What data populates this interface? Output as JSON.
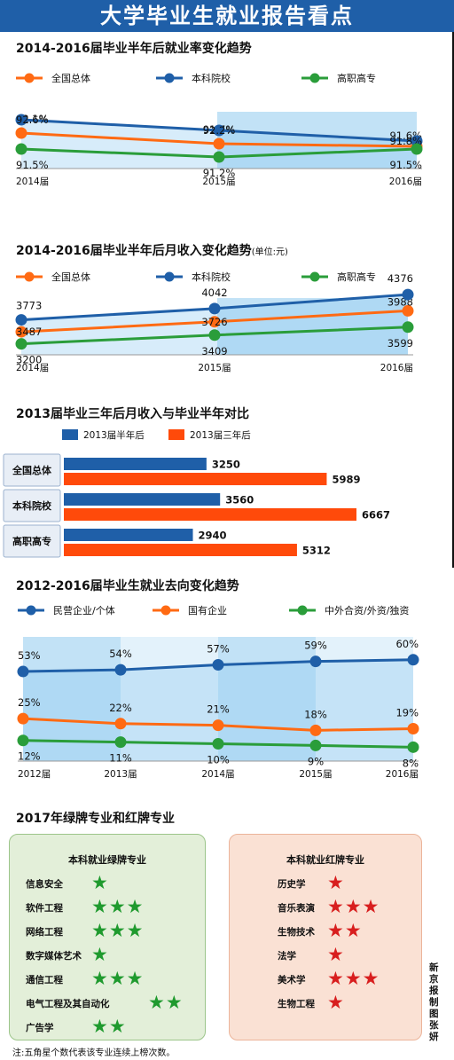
{
  "header": {
    "title": "大学毕业生就业报告看点"
  },
  "chart_data": [
    {
      "type": "line",
      "title": "2014-2016届毕业半年后就业率变化趋势",
      "categories": [
        "2014届",
        "2015届",
        "2016届"
      ],
      "series": [
        {
          "name": "全国总体",
          "color": "#ff6a13",
          "values": [
            92.1,
            91.7,
            91.6
          ],
          "labels": [
            "92.1%",
            "91.7%",
            "91.6%"
          ]
        },
        {
          "name": "本科院校",
          "color": "#1f5fa8",
          "values": [
            92.6,
            92.2,
            91.8
          ],
          "labels": [
            "92.6%",
            "92.2%",
            "91.8%"
          ]
        },
        {
          "name": "高职高专",
          "color": "#2a9d3a",
          "values": [
            91.5,
            91.2,
            91.5
          ],
          "labels": [
            "91.5%",
            "91.2%",
            "91.5%"
          ]
        }
      ]
    },
    {
      "type": "line",
      "title": "2014-2016届毕业半年后月收入变化趋势",
      "unit": "(单位:元)",
      "categories": [
        "2014届",
        "2015届",
        "2016届"
      ],
      "series": [
        {
          "name": "全国总体",
          "color": "#ff6a13",
          "values": [
            3487,
            3726,
            3988
          ],
          "labels": [
            "3487",
            "3726",
            "3988"
          ]
        },
        {
          "name": "本科院校",
          "color": "#1f5fa8",
          "values": [
            3773,
            4042,
            4376
          ],
          "labels": [
            "3773",
            "4042",
            "4376"
          ]
        },
        {
          "name": "高职高专",
          "color": "#2a9d3a",
          "values": [
            3200,
            3409,
            3599
          ],
          "labels": [
            "3200",
            "3409",
            "3599"
          ]
        }
      ]
    },
    {
      "type": "bar",
      "title": "2013届毕业三年后月收入与毕业半年对比",
      "categories": [
        "全国总体",
        "本科院校",
        "高职高专"
      ],
      "series": [
        {
          "name": "2013届半年后",
          "color": "#1f5fa8",
          "values": [
            3250,
            3560,
            2940
          ]
        },
        {
          "name": "2013届三年后",
          "color": "#ff4a0a",
          "values": [
            5989,
            6667,
            5312
          ]
        }
      ]
    },
    {
      "type": "line",
      "title": "2012-2016届毕业生就业去向变化趋势",
      "categories": [
        "2012届",
        "2013届",
        "2014届",
        "2015届",
        "2016届"
      ],
      "series": [
        {
          "name": "民营企业/个体",
          "color": "#1f5fa8",
          "values": [
            53,
            54,
            57,
            59,
            60
          ],
          "labels": [
            "53%",
            "54%",
            "57%",
            "59%",
            "60%"
          ]
        },
        {
          "name": "国有企业",
          "color": "#ff6a13",
          "values": [
            25,
            22,
            21,
            18,
            19
          ],
          "labels": [
            "25%",
            "22%",
            "21%",
            "18%",
            "19%"
          ]
        },
        {
          "name": "中外合资/外资/独资",
          "color": "#2a9d3a",
          "values": [
            12,
            11,
            10,
            9,
            8
          ],
          "labels": [
            "12%",
            "11%",
            "10%",
            "9%",
            "8%"
          ]
        }
      ]
    }
  ],
  "majors": {
    "title": "2017年绿牌专业和红牌专业",
    "green": {
      "title": "本科就业绿牌专业",
      "color": "#1f9a2e",
      "items": [
        {
          "name": "信息安全",
          "stars": 1
        },
        {
          "name": "软件工程",
          "stars": 3
        },
        {
          "name": "网络工程",
          "stars": 3
        },
        {
          "name": "数字媒体艺术",
          "stars": 1
        },
        {
          "name": "通信工程",
          "stars": 3
        },
        {
          "name": "电气工程及其自动化",
          "stars": 2
        },
        {
          "name": "广告学",
          "stars": 2
        }
      ]
    },
    "red": {
      "title": "本科就业红牌专业",
      "color": "#d81e1e",
      "items": [
        {
          "name": "历史学",
          "stars": 1
        },
        {
          "name": "音乐表演",
          "stars": 3
        },
        {
          "name": "生物技术",
          "stars": 2
        },
        {
          "name": "法学",
          "stars": 1
        },
        {
          "name": "美术学",
          "stars": 3
        },
        {
          "name": "生物工程",
          "stars": 1
        }
      ]
    }
  },
  "footnote": "注:五角星个数代表该专业连续上榜次数。",
  "credit": "新京报制图张妍"
}
